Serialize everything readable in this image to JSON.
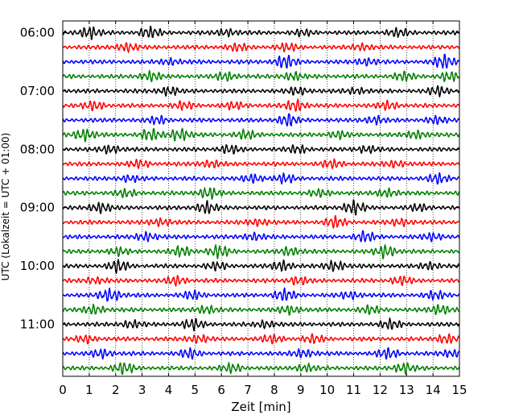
{
  "chart_data": {
    "type": "line",
    "description_kind": "helicorder",
    "xlabel": "Zeit  [min]",
    "ylabel": "UTC (Lokalzeit = UTC + 01:00)",
    "xlim": [
      0,
      15
    ],
    "x_ticks": [
      0,
      1,
      2,
      3,
      4,
      5,
      6,
      7,
      8,
      9,
      10,
      11,
      12,
      13,
      14,
      15
    ],
    "x_tick_labels": [
      "0",
      "1",
      "2",
      "3",
      "4",
      "5",
      "6",
      "7",
      "8",
      "9",
      "10",
      "11",
      "12",
      "13",
      "14",
      "15"
    ],
    "x_grid": "dotted vertical lines at every minute",
    "y_tick_labels": [
      "06:00",
      "07:00",
      "08:00",
      "09:00",
      "10:00",
      "11:00"
    ],
    "trace_colors": [
      "#000000",
      "#ff0000",
      "#0000ff",
      "#007f00"
    ],
    "trace_start_times": [
      "06:00",
      "06:15",
      "06:30",
      "06:45",
      "07:00",
      "07:15",
      "07:30",
      "07:45",
      "08:00",
      "08:15",
      "08:30",
      "08:45",
      "09:00",
      "09:15",
      "09:30",
      "09:45",
      "10:00",
      "10:15",
      "10:30",
      "10:45",
      "11:00",
      "11:15",
      "11:30",
      "11:45"
    ],
    "trace_minutes": 15,
    "bursts": [
      [
        [
          1.0,
          0.9
        ],
        [
          3.3,
          0.8
        ],
        [
          12.7,
          0.55
        ],
        [
          6.2,
          0.5
        ],
        [
          9.1,
          0.4
        ]
      ],
      [
        [
          2.4,
          0.6
        ],
        [
          6.6,
          0.5
        ],
        [
          8.5,
          0.5
        ],
        [
          11.3,
          0.45
        ]
      ],
      [
        [
          8.4,
          1.0
        ],
        [
          14.4,
          0.95
        ],
        [
          4.1,
          0.45
        ],
        [
          11.5,
          0.5
        ]
      ],
      [
        [
          3.3,
          0.7
        ],
        [
          6.2,
          0.6
        ],
        [
          8.7,
          0.6
        ],
        [
          12.9,
          0.55
        ],
        [
          14.6,
          0.6
        ]
      ],
      [
        [
          4.0,
          0.6
        ],
        [
          8.9,
          0.55
        ],
        [
          11.1,
          0.4
        ],
        [
          14.2,
          0.6
        ]
      ],
      [
        [
          1.2,
          0.6
        ],
        [
          4.6,
          0.5
        ],
        [
          8.8,
          0.8
        ],
        [
          12.3,
          0.55
        ],
        [
          6.5,
          0.45
        ]
      ],
      [
        [
          3.6,
          0.5
        ],
        [
          8.5,
          0.85
        ],
        [
          11.8,
          0.55
        ],
        [
          14.1,
          0.5
        ]
      ],
      [
        [
          0.8,
          0.85
        ],
        [
          3.3,
          0.8
        ],
        [
          4.4,
          0.9
        ],
        [
          6.9,
          0.6
        ],
        [
          10.4,
          0.5
        ],
        [
          13.4,
          0.55
        ]
      ],
      [
        [
          1.8,
          0.6
        ],
        [
          6.3,
          0.65
        ],
        [
          8.9,
          0.55
        ],
        [
          11.5,
          0.5
        ]
      ],
      [
        [
          2.9,
          0.5
        ],
        [
          5.6,
          0.5
        ],
        [
          10.2,
          0.55
        ],
        [
          12.6,
          0.45
        ]
      ],
      [
        [
          7.2,
          0.55
        ],
        [
          8.4,
          0.6
        ],
        [
          14.2,
          0.65
        ],
        [
          2.5,
          0.4
        ]
      ],
      [
        [
          2.4,
          0.5
        ],
        [
          5.5,
          0.8
        ],
        [
          12.3,
          0.55
        ],
        [
          9.7,
          0.45
        ]
      ],
      [
        [
          1.4,
          0.8
        ],
        [
          5.4,
          0.85
        ],
        [
          11.0,
          1.0
        ],
        [
          13.5,
          0.45
        ]
      ],
      [
        [
          3.7,
          0.5
        ],
        [
          7.4,
          0.45
        ],
        [
          10.3,
          0.7
        ],
        [
          12.8,
          0.5
        ]
      ],
      [
        [
          3.2,
          0.65
        ],
        [
          7.2,
          0.5
        ],
        [
          11.4,
          0.7
        ],
        [
          14.0,
          0.5
        ]
      ],
      [
        [
          4.5,
          0.7
        ],
        [
          5.9,
          0.9
        ],
        [
          12.2,
          0.9
        ],
        [
          8.6,
          0.6
        ],
        [
          2.1,
          0.5
        ]
      ],
      [
        [
          2.1,
          0.85
        ],
        [
          8.3,
          0.75
        ],
        [
          10.3,
          0.75
        ],
        [
          5.8,
          0.5
        ],
        [
          13.9,
          0.5
        ]
      ],
      [
        [
          4.3,
          0.6
        ],
        [
          8.9,
          0.55
        ],
        [
          12.8,
          0.6
        ],
        [
          1.2,
          0.45
        ]
      ],
      [
        [
          1.8,
          0.95
        ],
        [
          4.9,
          0.6
        ],
        [
          8.4,
          0.85
        ],
        [
          10.9,
          0.5
        ],
        [
          14.1,
          0.55
        ]
      ],
      [
        [
          1.2,
          0.6
        ],
        [
          5.4,
          0.55
        ],
        [
          8.6,
          0.6
        ],
        [
          11.6,
          0.5
        ],
        [
          14.3,
          0.7
        ]
      ],
      [
        [
          2.6,
          0.5
        ],
        [
          4.9,
          0.75
        ],
        [
          7.7,
          0.5
        ],
        [
          12.4,
          0.65
        ]
      ],
      [
        [
          0.9,
          0.5
        ],
        [
          5.1,
          0.6
        ],
        [
          7.9,
          0.55
        ],
        [
          9.5,
          0.55
        ],
        [
          14.5,
          0.65
        ]
      ],
      [
        [
          1.5,
          0.55
        ],
        [
          4.8,
          0.65
        ],
        [
          9.1,
          0.6
        ],
        [
          12.3,
          0.75
        ],
        [
          14.7,
          0.5
        ]
      ],
      [
        [
          2.3,
          0.75
        ],
        [
          6.4,
          0.6
        ],
        [
          9.2,
          0.5
        ],
        [
          12.9,
          0.7
        ]
      ]
    ]
  }
}
